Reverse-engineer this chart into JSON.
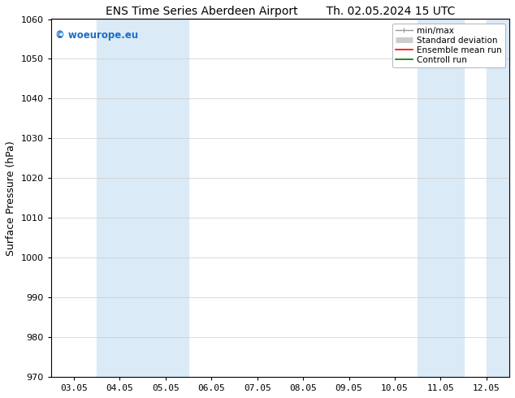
{
  "title_left": "ENS Time Series Aberdeen Airport",
  "title_right": "Th. 02.05.2024 15 UTC",
  "ylabel": "Surface Pressure (hPa)",
  "ylim": [
    970,
    1060
  ],
  "yticks": [
    970,
    980,
    990,
    1000,
    1010,
    1020,
    1030,
    1040,
    1050,
    1060
  ],
  "x_labels": [
    "03.05",
    "04.05",
    "05.05",
    "06.05",
    "07.05",
    "08.05",
    "09.05",
    "10.05",
    "11.05",
    "12.05"
  ],
  "x_positions": [
    0,
    1,
    2,
    3,
    4,
    5,
    6,
    7,
    8,
    9
  ],
  "xlim": [
    -0.5,
    9.5
  ],
  "shaded_bands": [
    {
      "x_start": 0.5,
      "x_end": 2.5
    },
    {
      "x_start": 7.5,
      "x_end": 8.5
    },
    {
      "x_start": 9.0,
      "x_end": 9.5
    }
  ],
  "band_color": "#daeaf7",
  "watermark_text": "© woeurope.eu",
  "watermark_color": "#1a6fc4",
  "background_color": "#ffffff",
  "legend_items": [
    {
      "label": "min/max",
      "color": "#999999",
      "lw": 1.0
    },
    {
      "label": "Standard deviation",
      "color": "#cccccc",
      "lw": 5
    },
    {
      "label": "Ensemble mean run",
      "color": "#ff0000",
      "lw": 1.2
    },
    {
      "label": "Controll run",
      "color": "#007700",
      "lw": 1.2
    }
  ],
  "title_fontsize": 10,
  "ylabel_fontsize": 9,
  "tick_fontsize": 8,
  "legend_fontsize": 7.5,
  "watermark_fontsize": 8.5
}
